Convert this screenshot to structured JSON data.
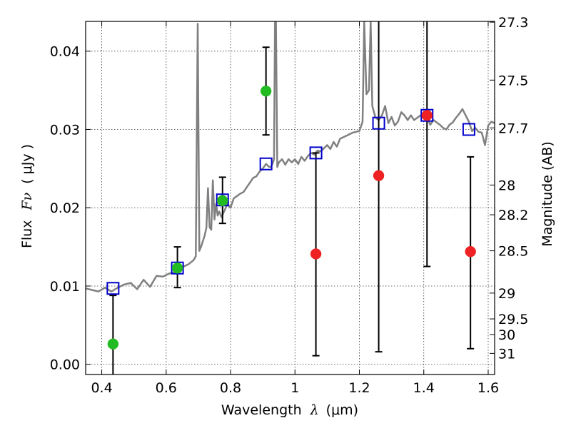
{
  "chart_data": {
    "type": "scatter",
    "title": "",
    "xlabel": {
      "text": "Wavelength",
      "symbol": "λ",
      "unit": "(μm)"
    },
    "ylabel": {
      "text": "Flux",
      "symbol": "Fν",
      "unit": "( μJy )"
    },
    "y2label": "Magnitude (AB)",
    "xlim": [
      0.35,
      1.62
    ],
    "ylim": [
      -0.0013,
      0.0438
    ],
    "grid": true,
    "x_ticks": [
      {
        "value": 0.4,
        "label": "0.4"
      },
      {
        "value": 0.6,
        "label": "0.6"
      },
      {
        "value": 0.8,
        "label": "0.8"
      },
      {
        "value": 1.0,
        "label": "1"
      },
      {
        "value": 1.2,
        "label": "1.2"
      },
      {
        "value": 1.4,
        "label": "1.4"
      },
      {
        "value": 1.6,
        "label": "1.6"
      }
    ],
    "y_ticks": [
      {
        "value": 0.0,
        "label": "0.00"
      },
      {
        "value": 0.01,
        "label": "0.01"
      },
      {
        "value": 0.02,
        "label": "0.02"
      },
      {
        "value": 0.03,
        "label": "0.03"
      },
      {
        "value": 0.04,
        "label": "0.04"
      }
    ],
    "y2_ticks": [
      {
        "mag": "27.3",
        "flux": 0.0437
      },
      {
        "mag": "27.5",
        "flux": 0.0363
      },
      {
        "mag": "27.7",
        "flux": 0.0302
      },
      {
        "mag": "28",
        "flux": 0.0229
      },
      {
        "mag": "28.2",
        "flux": 0.0191
      },
      {
        "mag": "28.5",
        "flux": 0.0145
      },
      {
        "mag": "29",
        "flux": 0.0091
      },
      {
        "mag": "29.5",
        "flux": 0.0058
      },
      {
        "mag": "30",
        "flux": 0.0038
      },
      {
        "mag": "31",
        "flux": 0.0014
      }
    ],
    "series": [
      {
        "kind": "line",
        "color": "#808080",
        "points": [
          [
            0.35,
            0.0097
          ],
          [
            0.37,
            0.0095
          ],
          [
            0.39,
            0.0093
          ],
          [
            0.41,
            0.0098
          ],
          [
            0.43,
            0.0093
          ],
          [
            0.45,
            0.0098
          ],
          [
            0.47,
            0.0102
          ],
          [
            0.49,
            0.0104
          ],
          [
            0.51,
            0.0096
          ],
          [
            0.53,
            0.0108
          ],
          [
            0.55,
            0.0099
          ],
          [
            0.57,
            0.0113
          ],
          [
            0.59,
            0.0112
          ],
          [
            0.61,
            0.0116
          ],
          [
            0.63,
            0.0118
          ],
          [
            0.65,
            0.0124
          ],
          [
            0.67,
            0.0128
          ],
          [
            0.685,
            0.0133
          ],
          [
            0.692,
            0.0138
          ],
          [
            0.698,
            0.0435
          ],
          [
            0.703,
            0.0145
          ],
          [
            0.71,
            0.0152
          ],
          [
            0.72,
            0.0165
          ],
          [
            0.725,
            0.0175
          ],
          [
            0.73,
            0.0225
          ],
          [
            0.735,
            0.0175
          ],
          [
            0.74,
            0.0172
          ],
          [
            0.745,
            0.0235
          ],
          [
            0.75,
            0.0185
          ],
          [
            0.755,
            0.0205
          ],
          [
            0.76,
            0.019
          ],
          [
            0.765,
            0.0195
          ],
          [
            0.772,
            0.0188
          ],
          [
            0.785,
            0.02
          ],
          [
            0.79,
            0.0205
          ],
          [
            0.8,
            0.02
          ],
          [
            0.81,
            0.0212
          ],
          [
            0.82,
            0.0215
          ],
          [
            0.83,
            0.0218
          ],
          [
            0.84,
            0.022
          ],
          [
            0.85,
            0.0226
          ],
          [
            0.86,
            0.0232
          ],
          [
            0.87,
            0.0238
          ],
          [
            0.88,
            0.024
          ],
          [
            0.89,
            0.0246
          ],
          [
            0.9,
            0.025
          ],
          [
            0.91,
            0.0256
          ],
          [
            0.92,
            0.0252
          ],
          [
            0.925,
            0.0252
          ],
          [
            0.93,
            0.0256
          ],
          [
            0.935,
            0.0262
          ],
          [
            0.938,
            0.0438
          ],
          [
            0.941,
            0.0438
          ],
          [
            0.945,
            0.0252
          ],
          [
            0.95,
            0.0258
          ],
          [
            0.96,
            0.0262
          ],
          [
            0.97,
            0.0255
          ],
          [
            0.98,
            0.0262
          ],
          [
            0.99,
            0.0258
          ],
          [
            1.0,
            0.0262
          ],
          [
            1.01,
            0.0256
          ],
          [
            1.02,
            0.0265
          ],
          [
            1.03,
            0.026
          ],
          [
            1.04,
            0.0266
          ],
          [
            1.05,
            0.027
          ],
          [
            1.06,
            0.0268
          ],
          [
            1.07,
            0.0273
          ],
          [
            1.08,
            0.0272
          ],
          [
            1.09,
            0.0276
          ],
          [
            1.1,
            0.028
          ],
          [
            1.11,
            0.0275
          ],
          [
            1.12,
            0.0284
          ],
          [
            1.13,
            0.0278
          ],
          [
            1.14,
            0.0288
          ],
          [
            1.15,
            0.029
          ],
          [
            1.16,
            0.0292
          ],
          [
            1.17,
            0.0294
          ],
          [
            1.18,
            0.0296
          ],
          [
            1.19,
            0.0297
          ],
          [
            1.2,
            0.0298
          ],
          [
            1.21,
            0.031
          ],
          [
            1.215,
            0.0438
          ],
          [
            1.222,
            0.0345
          ],
          [
            1.23,
            0.035
          ],
          [
            1.235,
            0.0438
          ],
          [
            1.24,
            0.033
          ],
          [
            1.25,
            0.0315
          ],
          [
            1.26,
            0.0312
          ],
          [
            1.27,
            0.0318
          ],
          [
            1.28,
            0.033
          ],
          [
            1.29,
            0.0308
          ],
          [
            1.3,
            0.0316
          ],
          [
            1.31,
            0.0305
          ],
          [
            1.32,
            0.031
          ],
          [
            1.33,
            0.0322
          ],
          [
            1.34,
            0.0318
          ],
          [
            1.35,
            0.0312
          ],
          [
            1.36,
            0.0318
          ],
          [
            1.37,
            0.0312
          ],
          [
            1.38,
            0.0315
          ],
          [
            1.39,
            0.0318
          ],
          [
            1.4,
            0.032
          ],
          [
            1.41,
            0.0316
          ],
          [
            1.42,
            0.0306
          ],
          [
            1.43,
            0.0312
          ],
          [
            1.44,
            0.0309
          ],
          [
            1.45,
            0.0306
          ],
          [
            1.46,
            0.0302
          ],
          [
            1.47,
            0.03
          ],
          [
            1.48,
            0.0306
          ],
          [
            1.49,
            0.0309
          ],
          [
            1.5,
            0.0315
          ],
          [
            1.51,
            0.032
          ],
          [
            1.52,
            0.0326
          ],
          [
            1.53,
            0.0318
          ],
          [
            1.54,
            0.031
          ],
          [
            1.55,
            0.0298
          ],
          [
            1.56,
            0.0302
          ],
          [
            1.57,
            0.0297
          ],
          [
            1.58,
            0.0296
          ],
          [
            1.59,
            0.028
          ],
          [
            1.6,
            0.0305
          ],
          [
            1.61,
            0.031
          ],
          [
            1.62,
            0.0308
          ]
        ]
      },
      {
        "kind": "open-square",
        "color": "#0000cc",
        "points": [
          [
            0.435,
            0.0097
          ],
          [
            0.635,
            0.0123
          ],
          [
            0.775,
            0.021
          ],
          [
            0.91,
            0.0256
          ],
          [
            1.065,
            0.027
          ],
          [
            1.26,
            0.0308
          ],
          [
            1.41,
            0.0318
          ],
          [
            1.54,
            0.03
          ]
        ]
      },
      {
        "kind": "filled-circle",
        "color": "#22bb22",
        "points": [
          [
            0.435,
            0.0026
          ],
          [
            0.635,
            0.0123
          ],
          [
            0.775,
            0.0209
          ],
          [
            0.91,
            0.0349
          ]
        ]
      },
      {
        "kind": "filled-circle",
        "color": "#ee2222",
        "points": [
          [
            1.065,
            0.0141
          ],
          [
            1.26,
            0.0241
          ],
          [
            1.41,
            0.0318
          ],
          [
            1.545,
            0.0144
          ]
        ]
      }
    ],
    "error_bars": [
      {
        "x": 0.435,
        "low": -0.0013,
        "high": 0.0088
      },
      {
        "x": 0.635,
        "low": 0.0098,
        "high": 0.015
      },
      {
        "x": 0.775,
        "low": 0.018,
        "high": 0.0239
      },
      {
        "x": 0.91,
        "low": 0.0293,
        "high": 0.0405
      },
      {
        "x": 1.065,
        "low": 0.0011,
        "high": 0.027
      },
      {
        "x": 1.26,
        "low": 0.0016,
        "high": 0.0438
      },
      {
        "x": 1.41,
        "low": 0.0125,
        "high": 0.0438
      },
      {
        "x": 1.545,
        "low": 0.002,
        "high": 0.0265
      }
    ]
  }
}
